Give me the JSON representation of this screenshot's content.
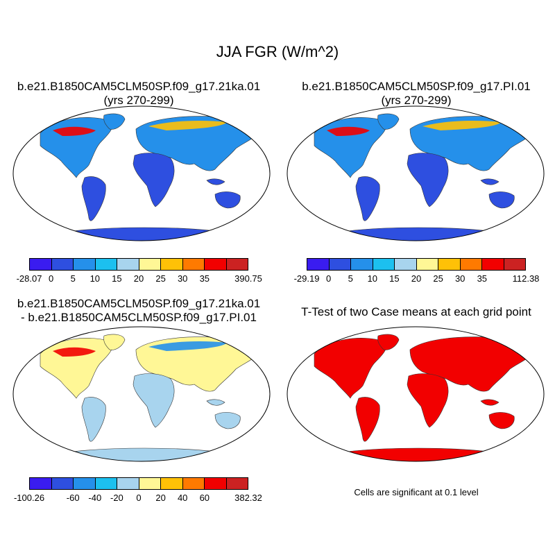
{
  "title": "JJA FGR (W/m^2)",
  "panels": {
    "a": {
      "title_line1": "b.e21.B1850CAM5CLM50SP.f09_g17.21ka.01",
      "title_line2": "(yrs 270-299)"
    },
    "b": {
      "title_line1": "b.e21.B1850CAM5CLM50SP.f09_g17.PI.01",
      "title_line2": "(yrs 270-299)"
    },
    "c": {
      "title_line1": "b.e21.B1850CAM5CLM50SP.f09_g17.21ka.01",
      "title_line2": "- b.e21.B1850CAM5CLM50SP.f09_g17.PI.01"
    },
    "d": {
      "title_line1": "T-Test of two Case means at each grid point"
    }
  },
  "colorbars": {
    "a": {
      "colors": [
        "#3a1cf0",
        "#2e4fe0",
        "#2590ea",
        "#1cc0ef",
        "#a8d4ee",
        "#fff796",
        "#ffc107",
        "#ff7a00",
        "#f20000",
        "#cc2222"
      ],
      "labels": [
        "-28.07",
        "0",
        "5",
        "10",
        "15",
        "20",
        "25",
        "30",
        "35",
        "390.75"
      ]
    },
    "b": {
      "colors": [
        "#3a1cf0",
        "#2e4fe0",
        "#2590ea",
        "#1cc0ef",
        "#a8d4ee",
        "#fff796",
        "#ffc107",
        "#ff7a00",
        "#f20000",
        "#cc2222"
      ],
      "labels": [
        "-29.19",
        "0",
        "5",
        "10",
        "15",
        "20",
        "25",
        "30",
        "35",
        "112.38"
      ]
    },
    "c": {
      "colors": [
        "#3a1cf0",
        "#2e4fe0",
        "#2590ea",
        "#1cc0ef",
        "#a8d4ee",
        "#fff796",
        "#ffc107",
        "#ff7a00",
        "#f20000",
        "#cc2222"
      ],
      "labels": [
        "-100.26",
        "",
        "-60",
        "-40",
        "-20",
        "0",
        "20",
        "40",
        "60",
        "382.32"
      ]
    }
  },
  "significance_note": "Cells are significant at 0.1 level",
  "land_colors": {
    "a": {
      "base": "#2e4fe0",
      "north": "#2590ea",
      "hot": "#f20000",
      "warm": "#ffc107"
    },
    "b": {
      "base": "#2e4fe0",
      "north": "#2590ea",
      "hot": "#f20000",
      "warm": "#ffc107"
    },
    "c": {
      "base": "#a8d4ee",
      "north": "#fff796",
      "hot": "#f20000",
      "warm": "#2590ea"
    },
    "d": {
      "base": "#f20000",
      "north": "#f20000",
      "hot": "#f20000",
      "warm": "#f20000"
    }
  }
}
